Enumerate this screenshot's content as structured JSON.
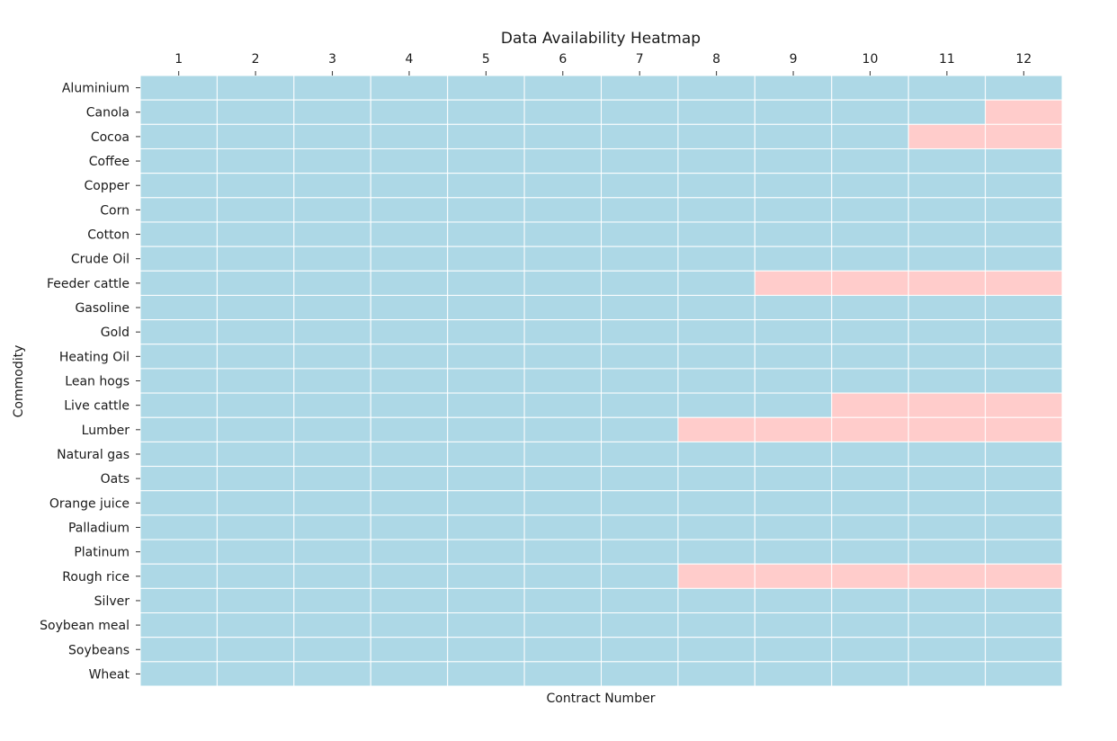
{
  "chart_data": {
    "type": "heatmap",
    "title": "Data Availability Heatmap",
    "xlabel": "Contract Number",
    "ylabel": "Commodity",
    "x_axis_position": "top",
    "grid": false,
    "legend": "none",
    "colors": {
      "available": "#add8e6",
      "missing": "#ffcccb",
      "cell_border": "#ffffff"
    },
    "x_categories": [
      "1",
      "2",
      "3",
      "4",
      "5",
      "6",
      "7",
      "8",
      "9",
      "10",
      "11",
      "12"
    ],
    "y_categories": [
      "Aluminium",
      "Canola",
      "Cocoa",
      "Coffee",
      "Copper",
      "Corn",
      "Cotton",
      "Crude Oil",
      "Feeder cattle",
      "Gasoline",
      "Gold",
      "Heating Oil",
      "Lean hogs",
      "Live cattle",
      "Lumber",
      "Natural gas",
      "Oats",
      "Orange juice",
      "Palladium",
      "Platinum",
      "Rough rice",
      "Silver",
      "Soybean meal",
      "Soybeans",
      "Wheat"
    ],
    "values": [
      [
        1,
        1,
        1,
        1,
        1,
        1,
        1,
        1,
        1,
        1,
        1,
        1
      ],
      [
        1,
        1,
        1,
        1,
        1,
        1,
        1,
        1,
        1,
        1,
        1,
        0
      ],
      [
        1,
        1,
        1,
        1,
        1,
        1,
        1,
        1,
        1,
        1,
        0,
        0
      ],
      [
        1,
        1,
        1,
        1,
        1,
        1,
        1,
        1,
        1,
        1,
        1,
        1
      ],
      [
        1,
        1,
        1,
        1,
        1,
        1,
        1,
        1,
        1,
        1,
        1,
        1
      ],
      [
        1,
        1,
        1,
        1,
        1,
        1,
        1,
        1,
        1,
        1,
        1,
        1
      ],
      [
        1,
        1,
        1,
        1,
        1,
        1,
        1,
        1,
        1,
        1,
        1,
        1
      ],
      [
        1,
        1,
        1,
        1,
        1,
        1,
        1,
        1,
        1,
        1,
        1,
        1
      ],
      [
        1,
        1,
        1,
        1,
        1,
        1,
        1,
        1,
        0,
        0,
        0,
        0
      ],
      [
        1,
        1,
        1,
        1,
        1,
        1,
        1,
        1,
        1,
        1,
        1,
        1
      ],
      [
        1,
        1,
        1,
        1,
        1,
        1,
        1,
        1,
        1,
        1,
        1,
        1
      ],
      [
        1,
        1,
        1,
        1,
        1,
        1,
        1,
        1,
        1,
        1,
        1,
        1
      ],
      [
        1,
        1,
        1,
        1,
        1,
        1,
        1,
        1,
        1,
        1,
        1,
        1
      ],
      [
        1,
        1,
        1,
        1,
        1,
        1,
        1,
        1,
        1,
        0,
        0,
        0
      ],
      [
        1,
        1,
        1,
        1,
        1,
        1,
        1,
        0,
        0,
        0,
        0,
        0
      ],
      [
        1,
        1,
        1,
        1,
        1,
        1,
        1,
        1,
        1,
        1,
        1,
        1
      ],
      [
        1,
        1,
        1,
        1,
        1,
        1,
        1,
        1,
        1,
        1,
        1,
        1
      ],
      [
        1,
        1,
        1,
        1,
        1,
        1,
        1,
        1,
        1,
        1,
        1,
        1
      ],
      [
        1,
        1,
        1,
        1,
        1,
        1,
        1,
        1,
        1,
        1,
        1,
        1
      ],
      [
        1,
        1,
        1,
        1,
        1,
        1,
        1,
        1,
        1,
        1,
        1,
        1
      ],
      [
        1,
        1,
        1,
        1,
        1,
        1,
        1,
        0,
        0,
        0,
        0,
        0
      ],
      [
        1,
        1,
        1,
        1,
        1,
        1,
        1,
        1,
        1,
        1,
        1,
        1
      ],
      [
        1,
        1,
        1,
        1,
        1,
        1,
        1,
        1,
        1,
        1,
        1,
        1
      ],
      [
        1,
        1,
        1,
        1,
        1,
        1,
        1,
        1,
        1,
        1,
        1,
        1
      ],
      [
        1,
        1,
        1,
        1,
        1,
        1,
        1,
        1,
        1,
        1,
        1,
        1
      ]
    ]
  }
}
